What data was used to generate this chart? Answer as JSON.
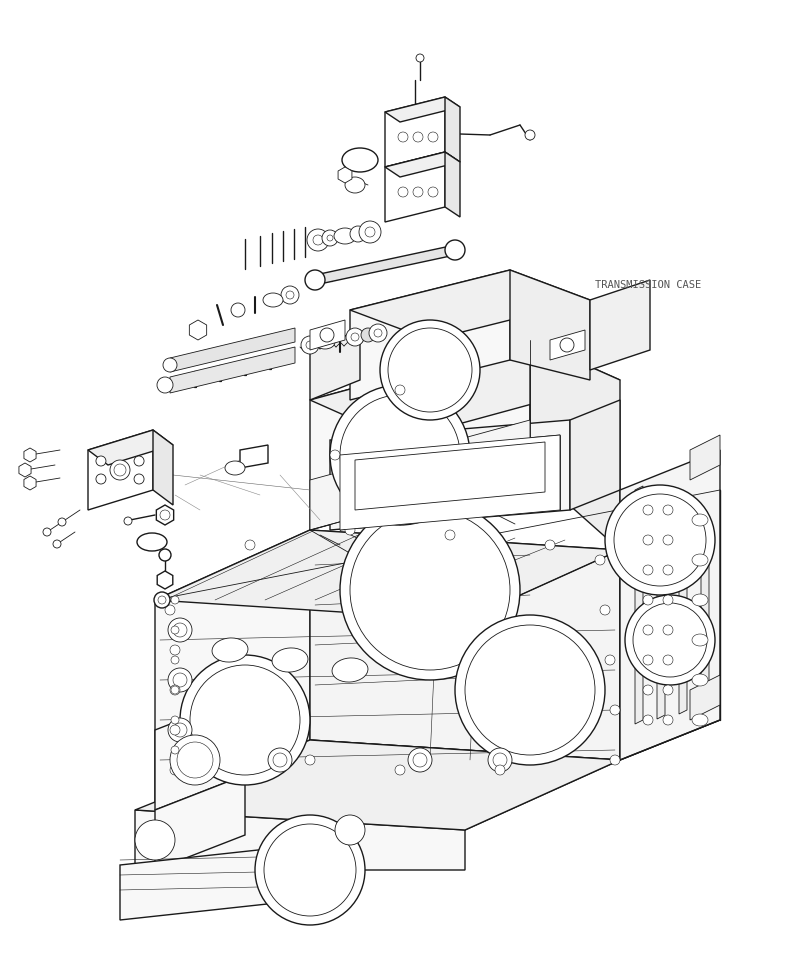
{
  "background_color": "#ffffff",
  "line_color": "#1a1a1a",
  "label_transmission": "TRANSMISSION CASE",
  "label_fontsize": 7.5,
  "label_color": "#555555",
  "fig_width": 7.92,
  "fig_height": 9.61,
  "dpi": 100,
  "lw_main": 1.0,
  "lw_detail": 0.6,
  "lw_thin": 0.4
}
